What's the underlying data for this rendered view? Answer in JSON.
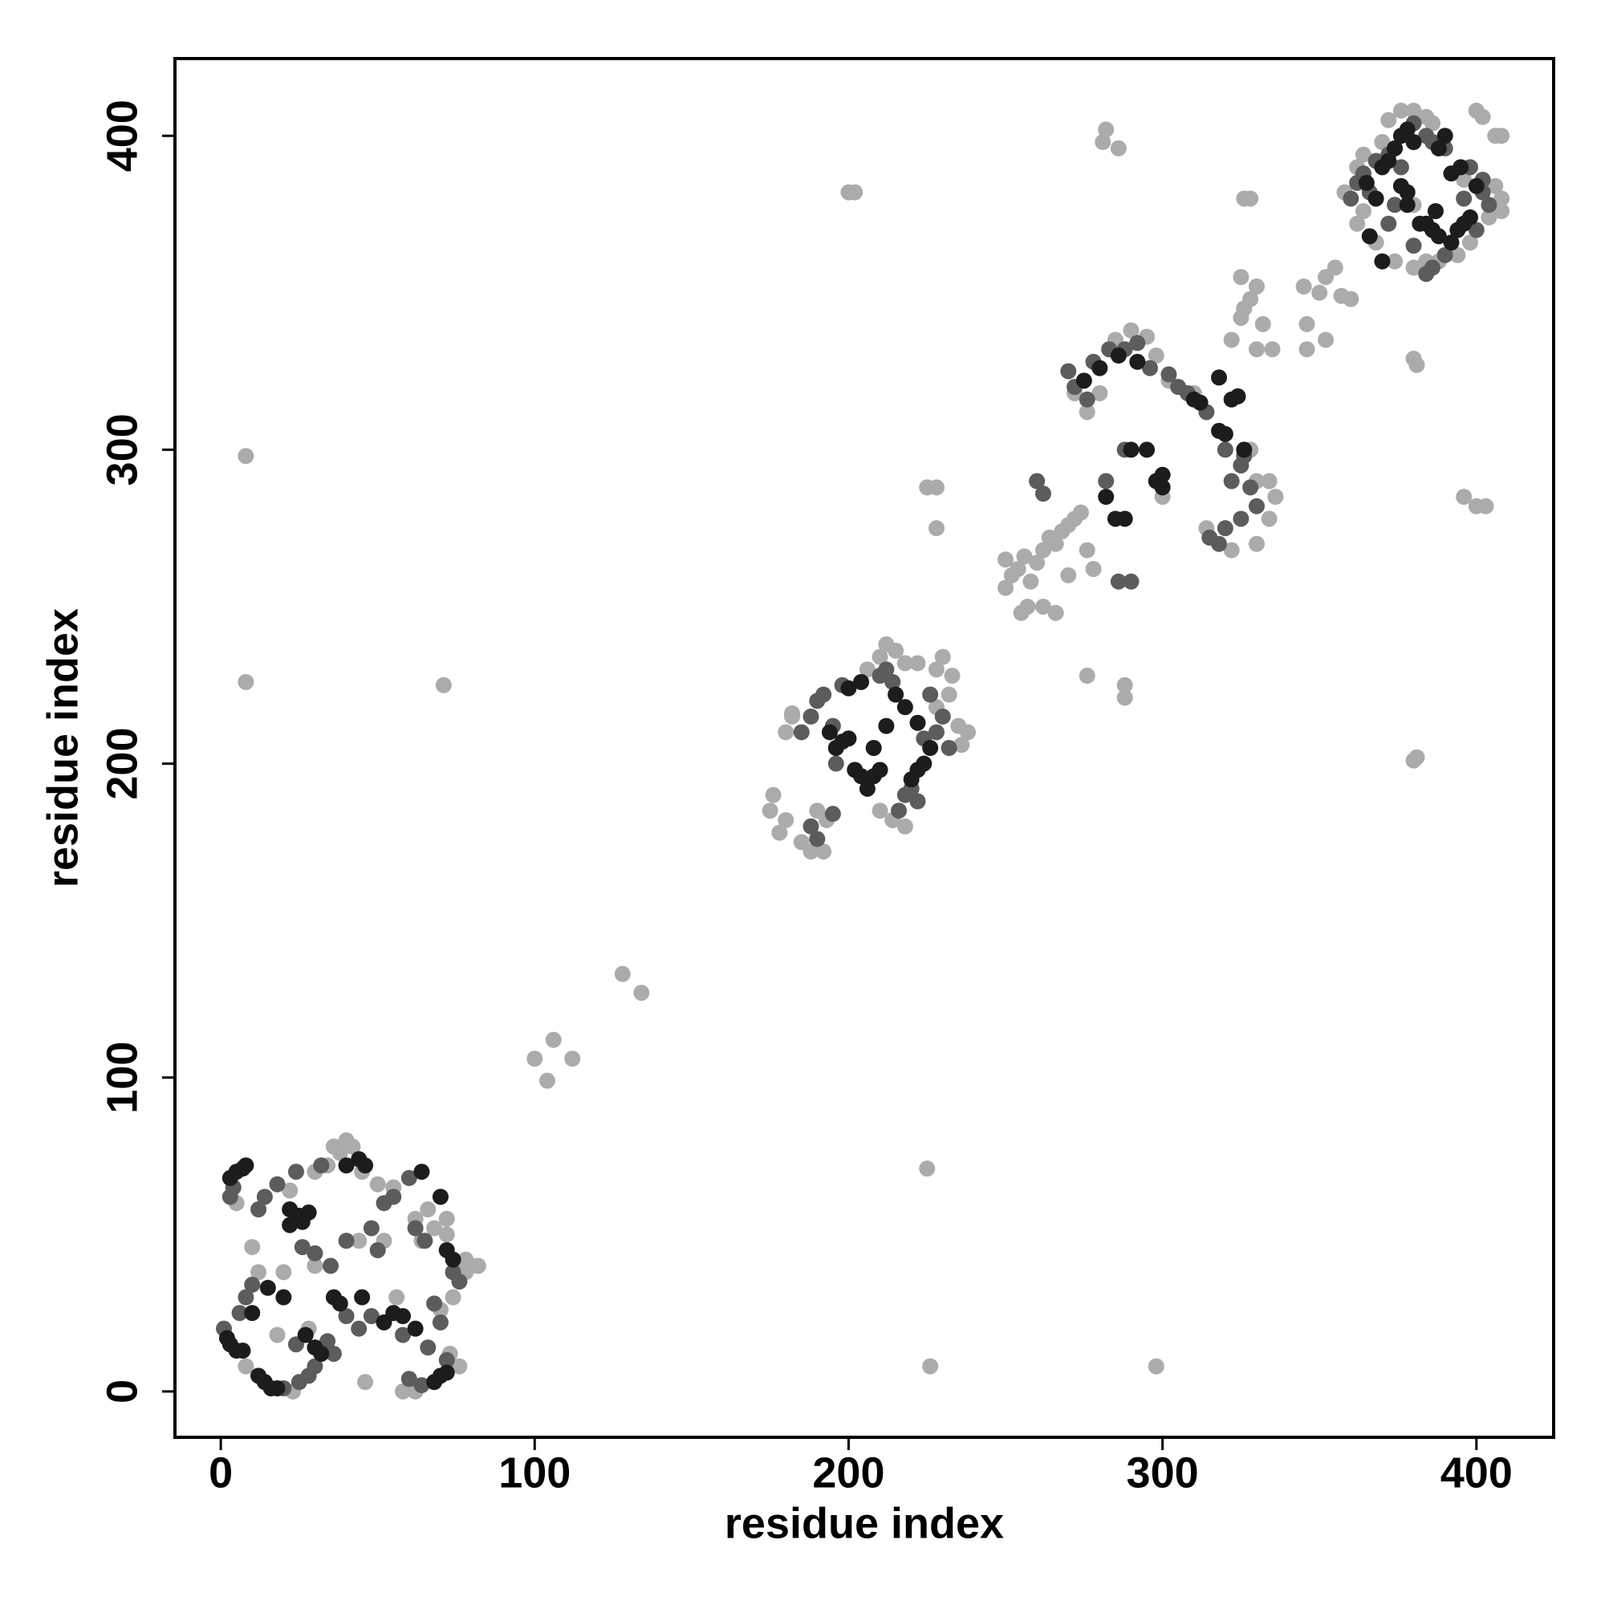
{
  "chart_data": {
    "type": "scatter",
    "x_label": "residue index",
    "y_label": "residue index",
    "xlim": [
      -14.6,
      424.6
    ],
    "ylim": [
      -14.6,
      424.6
    ],
    "xticks": [
      0,
      100,
      200,
      300,
      400
    ],
    "yticks": [
      0,
      100,
      200,
      300,
      400
    ],
    "grid": false,
    "series": [
      {
        "color": "#ababab",
        "x": [
          5,
          10,
          12,
          20,
          22,
          30,
          34,
          38,
          40,
          42,
          36,
          45,
          50,
          55,
          62,
          68,
          72,
          76,
          78,
          80,
          82,
          78,
          74,
          70,
          76,
          73,
          62,
          58,
          23,
          46,
          18,
          52,
          64,
          66,
          72,
          30,
          8,
          28,
          44,
          56,
          8,
          8,
          71,
          100,
          104,
          106,
          112,
          128,
          134,
          225,
          226,
          298,
          228,
          225,
          228,
          200,
          202,
          282,
          281,
          286,
          326,
          328,
          396,
          400,
          403,
          380,
          381,
          276,
          288,
          288,
          381,
          380,
          175,
          176,
          178,
          180,
          182,
          185,
          188,
          190,
          192,
          193,
          206,
          210,
          212,
          215,
          218,
          222,
          228,
          230,
          233,
          235,
          238,
          236,
          232,
          214,
          218,
          210,
          228,
          182,
          180,
          250,
          252,
          254,
          256,
          258,
          260,
          262,
          264,
          266,
          268,
          270,
          272,
          274,
          276,
          278,
          255,
          257,
          262,
          266,
          250,
          270,
          285,
          290,
          295,
          298,
          302,
          310,
          330,
          334,
          336,
          334,
          330,
          322,
          314,
          328,
          280,
          276,
          272,
          300,
          325,
          326,
          328,
          330,
          332,
          325,
          330,
          335,
          322,
          346,
          346,
          352,
          350,
          352,
          355,
          345,
          360,
          357,
          358,
          362,
          364,
          370,
          372,
          376,
          380,
          384,
          386,
          400,
          402,
          406,
          408,
          406,
          408,
          408,
          404,
          398,
          394,
          388,
          380,
          374,
          368,
          362,
          364,
          380,
          384,
          396
        ],
        "values": [
          60,
          46,
          38,
          38,
          64,
          70,
          72,
          76,
          80,
          78,
          78,
          70,
          66,
          65,
          55,
          52,
          50,
          40,
          42,
          40,
          40,
          38,
          30,
          26,
          8,
          12,
          0,
          0,
          0,
          3,
          18,
          48,
          48,
          58,
          55,
          40,
          8,
          20,
          48,
          30,
          298,
          226,
          225,
          106,
          99,
          112,
          106,
          133,
          127,
          71,
          8,
          8,
          288,
          288,
          275,
          382,
          382,
          402,
          398,
          396,
          380,
          380,
          285,
          282,
          282,
          201,
          202,
          228,
          221,
          225,
          327,
          329,
          185,
          190,
          178,
          182,
          215,
          175,
          172,
          185,
          172,
          182,
          230,
          234,
          238,
          236,
          232,
          232,
          230,
          234,
          228,
          212,
          210,
          206,
          222,
          182,
          180,
          185,
          218,
          216,
          210,
          256,
          260,
          262,
          266,
          258,
          264,
          268,
          272,
          270,
          274,
          276,
          278,
          280,
          268,
          262,
          248,
          250,
          250,
          248,
          265,
          260,
          335,
          338,
          336,
          330,
          322,
          318,
          290,
          290,
          285,
          278,
          270,
          268,
          275,
          300,
          318,
          312,
          318,
          285,
          355,
          345,
          348,
          352,
          340,
          342,
          332,
          332,
          335,
          340,
          332,
          335,
          350,
          355,
          358,
          352,
          348,
          349,
          382,
          390,
          394,
          398,
          405,
          408,
          408,
          406,
          404,
          408,
          406,
          400,
          400,
          384,
          380,
          376,
          374,
          366,
          362,
          360,
          358,
          360,
          366,
          372,
          376,
          378,
          360,
          386
        ]
      },
      {
        "color": "#5c5c5c",
        "x": [
          3,
          4,
          8,
          10,
          6,
          1,
          25,
          28,
          30,
          20,
          35,
          30,
          26,
          40,
          48,
          50,
          52,
          55,
          60,
          62,
          65,
          68,
          70,
          72,
          74,
          76,
          24,
          34,
          40,
          44,
          48,
          58,
          60,
          64,
          66,
          14,
          18,
          24,
          32,
          36,
          12,
          185,
          188,
          190,
          192,
          195,
          198,
          210,
          214,
          216,
          218,
          220,
          222,
          224,
          228,
          230,
          232,
          188,
          190,
          195,
          212,
          226,
          196,
          270,
          272,
          276,
          278,
          283,
          288,
          292,
          296,
          302,
          305,
          308,
          314,
          320,
          322,
          325,
          328,
          325,
          320,
          315,
          318,
          330,
          326,
          282,
          288,
          286,
          290,
          260,
          262,
          360,
          362,
          364,
          368,
          372,
          380,
          384,
          386,
          390,
          398,
          402,
          404,
          390,
          386,
          384,
          380,
          372,
          374,
          376,
          396,
          366,
          400,
          402
        ],
        "values": [
          62,
          65,
          30,
          34,
          25,
          20,
          3,
          5,
          8,
          1,
          40,
          44,
          46,
          48,
          52,
          45,
          60,
          62,
          68,
          52,
          48,
          28,
          22,
          10,
          38,
          35,
          15,
          16,
          24,
          20,
          24,
          18,
          4,
          2,
          14,
          62,
          66,
          70,
          72,
          12,
          58,
          210,
          215,
          220,
          222,
          212,
          225,
          228,
          226,
          185,
          190,
          192,
          188,
          208,
          210,
          215,
          205,
          180,
          176,
          184,
          230,
          222,
          200,
          325,
          320,
          316,
          328,
          332,
          332,
          334,
          326,
          324,
          320,
          318,
          312,
          300,
          290,
          295,
          288,
          278,
          275,
          272,
          270,
          282,
          298,
          290,
          300,
          258,
          258,
          290,
          286,
          380,
          385,
          388,
          392,
          394,
          404,
          400,
          398,
          396,
          390,
          382,
          378,
          362,
          358,
          356,
          365,
          372,
          378,
          390,
          380,
          382,
          370,
          386
        ]
      },
      {
        "color": "#1c1c1c",
        "x": [
          3,
          5,
          7,
          2,
          5,
          7,
          8,
          3,
          12,
          14,
          16,
          18,
          22,
          25,
          26,
          28,
          22,
          27,
          30,
          32,
          36,
          38,
          40,
          44,
          46,
          52,
          55,
          58,
          62,
          64,
          70,
          72,
          74,
          68,
          70,
          72,
          15,
          20,
          10,
          45,
          194,
          196,
          198,
          200,
          202,
          204,
          206,
          208,
          210,
          212,
          215,
          218,
          220,
          222,
          224,
          226,
          200,
          204,
          208,
          222,
          282,
          285,
          288,
          290,
          295,
          298,
          300,
          300,
          310,
          312,
          318,
          320,
          322,
          318,
          324,
          326,
          275,
          280,
          286,
          292,
          365,
          368,
          370,
          372,
          374,
          376,
          378,
          380,
          376,
          378,
          378,
          382,
          386,
          388,
          392,
          394,
          396,
          398,
          400,
          395,
          392,
          388,
          390,
          366,
          370,
          384,
          387
        ],
        "values": [
          15,
          13,
          13,
          17,
          70,
          71,
          72,
          68,
          5,
          3,
          1,
          1,
          58,
          56,
          54,
          57,
          53,
          18,
          14,
          12,
          30,
          28,
          72,
          74,
          72,
          22,
          25,
          24,
          20,
          70,
          62,
          45,
          42,
          3,
          5,
          6,
          33,
          30,
          25,
          30,
          210,
          205,
          207,
          208,
          198,
          196,
          192,
          196,
          198,
          212,
          222,
          218,
          195,
          198,
          200,
          205,
          224,
          226,
          205,
          213,
          285,
          278,
          278,
          300,
          300,
          290,
          292,
          288,
          316,
          315,
          306,
          305,
          316,
          323,
          317,
          300,
          322,
          326,
          330,
          328,
          385,
          380,
          390,
          392,
          396,
          400,
          402,
          398,
          384,
          382,
          378,
          372,
          370,
          368,
          366,
          370,
          372,
          374,
          384,
          390,
          388,
          396,
          400,
          368,
          360,
          372,
          376
        ]
      }
    ]
  }
}
